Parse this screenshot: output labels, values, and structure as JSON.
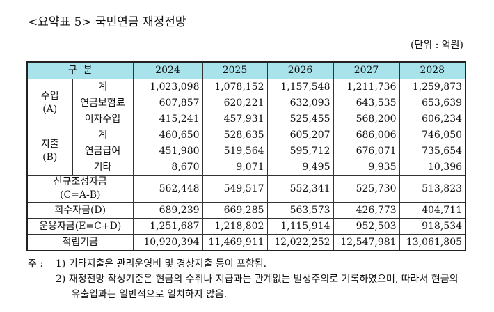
{
  "title": "<요약표 5> 국민연금 재정전망",
  "unit": "(단위 : 억원)",
  "table": {
    "header": {
      "label": "구  분",
      "years": [
        "2024",
        "2025",
        "2026",
        "2027",
        "2028"
      ]
    },
    "groups": [
      {
        "label": [
          "수입",
          "(A)"
        ],
        "rows": [
          {
            "label": "계",
            "values": [
              "1,023,098",
              "1,078,152",
              "1,157,548",
              "1,211,736",
              "1,259,873"
            ]
          },
          {
            "label": "연금보험료",
            "values": [
              "607,857",
              "620,221",
              "632,093",
              "643,535",
              "653,639"
            ]
          },
          {
            "label": "이자수입",
            "values": [
              "415,241",
              "457,931",
              "525,455",
              "568,200",
              "606,234"
            ]
          }
        ]
      },
      {
        "label": [
          "지출",
          "(B)"
        ],
        "rows": [
          {
            "label": "계",
            "values": [
              "460,650",
              "528,635",
              "605,207",
              "686,006",
              "746,050"
            ]
          },
          {
            "label": "연금급여",
            "values": [
              "451,980",
              "519,564",
              "595,712",
              "676,071",
              "735,654"
            ]
          },
          {
            "label": "기타",
            "values": [
              "8,670",
              "9,071",
              "9,495",
              "9,935",
              "10,396"
            ]
          }
        ]
      }
    ],
    "rows": [
      {
        "label": [
          "신규조성자금",
          "(C=A-B)"
        ],
        "values": [
          "562,448",
          "549,517",
          "552,341",
          "525,730",
          "513,823"
        ]
      },
      {
        "label": [
          "회수자금(D)"
        ],
        "values": [
          "689,239",
          "669,285",
          "563,573",
          "426,773",
          "404,711"
        ]
      },
      {
        "label": [
          "운용자금(E=C+D)"
        ],
        "values": [
          "1,251,687",
          "1,218,802",
          "1,115,914",
          "952,503",
          "918,534"
        ]
      },
      {
        "label": [
          "적립기금"
        ],
        "values": [
          "10,920,394",
          "11,469,911",
          "12,022,252",
          "12,547,981",
          "13,061,805"
        ]
      }
    ]
  },
  "notes": {
    "prefix": "주 :",
    "items": [
      "1) 기타지출은 관리운영비 및 경상지출 등이 포함됨.",
      "2) 재정전망 작성기준은 현금의 수취나 지급과는 관계없는 발생주의로 기록하였으며, 따라서 현금의 유출입과는 일반적으로 일치하지 않음."
    ]
  }
}
